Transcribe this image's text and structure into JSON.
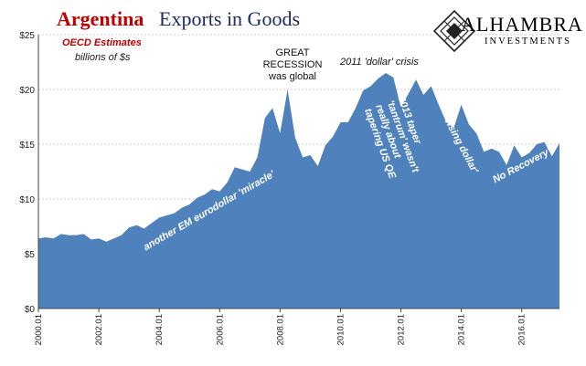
{
  "header": {
    "title_part1": "Argentina",
    "title_part2": "Exports in Goods",
    "subtitle_line1": "OECD Estimates",
    "subtitle_line2": "billions of $s"
  },
  "logo": {
    "name": "ALHAMBRA",
    "tagline": "INVESTMENTS",
    "icon": "diamond-lattice-icon"
  },
  "annotations": {
    "great_recession": "GREAT RECESSION was global",
    "dollar_crisis": "2011 'dollar' crisis",
    "eurodollar_miracle": "another EM eurodollar 'miracle'",
    "taper_tantrum": "2013 taper 'tantrum' wasn't really about tapering US QE",
    "rising_dollar": "'rising dollar'",
    "no_recovery": "No Recovery?"
  },
  "colors": {
    "area_fill": "#4f81bd",
    "title_red": "#c00000",
    "title_navy": "#1f2a60",
    "gridline": "#bfbfbf"
  },
  "chart_data": {
    "type": "area",
    "title": "Argentina Exports in Goods",
    "ylabel": "",
    "xlabel": "",
    "ylim": [
      0,
      25
    ],
    "y_ticks": [
      "$0",
      "$5",
      "$10",
      "$15",
      "$20",
      "$25"
    ],
    "x_ticks": [
      "2000.01",
      "2002.01",
      "2004.01",
      "2006.01",
      "2008.01",
      "2010.01",
      "2012.01",
      "2014.01",
      "2016.01"
    ],
    "grid": true,
    "legend": "none",
    "series": [
      {
        "x": [
          "2000.01",
          "2000.04",
          "2000.07",
          "2000.10",
          "2001.01",
          "2001.04",
          "2001.07",
          "2001.10",
          "2002.01",
          "2002.04",
          "2002.07",
          "2002.10",
          "2003.01",
          "2003.04",
          "2003.07",
          "2003.10",
          "2004.01",
          "2004.04",
          "2004.07",
          "2004.10",
          "2005.01",
          "2005.04",
          "2005.07",
          "2005.10",
          "2006.01",
          "2006.04",
          "2006.07",
          "2006.10",
          "2007.01",
          "2007.04",
          "2007.07",
          "2007.10",
          "2008.01",
          "2008.04",
          "2008.07",
          "2008.10",
          "2009.01",
          "2009.04",
          "2009.07",
          "2009.10",
          "2010.01",
          "2010.04",
          "2010.07",
          "2010.10",
          "2011.01",
          "2011.04",
          "2011.07",
          "2011.10",
          "2012.01",
          "2012.04",
          "2012.07",
          "2012.10",
          "2013.01",
          "2013.04",
          "2013.07",
          "2013.10",
          "2014.01",
          "2014.04",
          "2014.07",
          "2014.10",
          "2015.01",
          "2015.04",
          "2015.07",
          "2015.10",
          "2016.01",
          "2016.04",
          "2016.07",
          "2016.10",
          "2017.01",
          "2017.04"
        ],
        "values": [
          6.4,
          6.5,
          6.4,
          6.8,
          6.7,
          6.7,
          6.8,
          6.3,
          6.4,
          6.1,
          6.4,
          6.7,
          7.4,
          7.6,
          7.3,
          7.8,
          8.3,
          8.5,
          8.7,
          9.2,
          9.5,
          10.1,
          10.4,
          10.9,
          10.7,
          11.5,
          12.9,
          12.7,
          12.5,
          13.8,
          17.4,
          18.3,
          16.0,
          20.0,
          15.6,
          13.8,
          14.0,
          13.0,
          14.9,
          15.7,
          17.0,
          17.0,
          18.3,
          19.9,
          20.3,
          21.0,
          21.5,
          21.1,
          18.4,
          19.6,
          20.9,
          19.5,
          20.3,
          18.6,
          17.0,
          16.5,
          18.6,
          16.8,
          16.0,
          14.3,
          14.6,
          14.3,
          13.1,
          14.9,
          13.8,
          14.2,
          15.0,
          15.2,
          13.9,
          15.1
        ]
      }
    ]
  }
}
